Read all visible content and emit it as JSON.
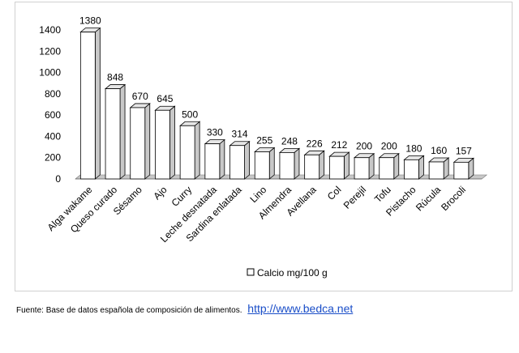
{
  "chart_data": {
    "type": "bar",
    "categories": [
      "Alga wakame",
      "Queso curado",
      "Sésamo",
      "Ajo",
      "Curry",
      "Leche desnatada",
      "Sardina enlatada",
      "Lino",
      "Almendra",
      "Avellana",
      "Col",
      "Perejil",
      "Tofu",
      "Pistacho",
      "Rúcula",
      "Brocoli"
    ],
    "series": [
      {
        "name": "Calcio mg/100 g",
        "values": [
          1380,
          848,
          670,
          645,
          500,
          330,
          314,
          255,
          248,
          226,
          212,
          200,
          200,
          180,
          160,
          157
        ]
      }
    ],
    "data_labels": [
      "1380",
      "848",
      "670",
      "645",
      "500",
      "330",
      "314",
      "255",
      "248",
      "226",
      "212",
      "200",
      "200",
      "180",
      "160",
      "157"
    ],
    "y_ticks": [
      "0",
      "200",
      "400",
      "600",
      "800",
      "1000",
      "1200",
      "1400"
    ],
    "ylim": [
      0,
      1400
    ],
    "title": "",
    "xlabel": "",
    "ylabel": "",
    "grid": false,
    "legend_position": "bottom",
    "bar_style": "3d",
    "colors": {
      "bar_face": "#ffffff",
      "bar_side": "#c8c8c8",
      "bar_top": "#e6e6e6",
      "outline": "#000000"
    }
  },
  "legend": {
    "label": "Calcio mg/100 g"
  },
  "source": {
    "text": "Fuente: Base de datos española de composición de alimentos.",
    "link": "http://www.bedca.net"
  }
}
